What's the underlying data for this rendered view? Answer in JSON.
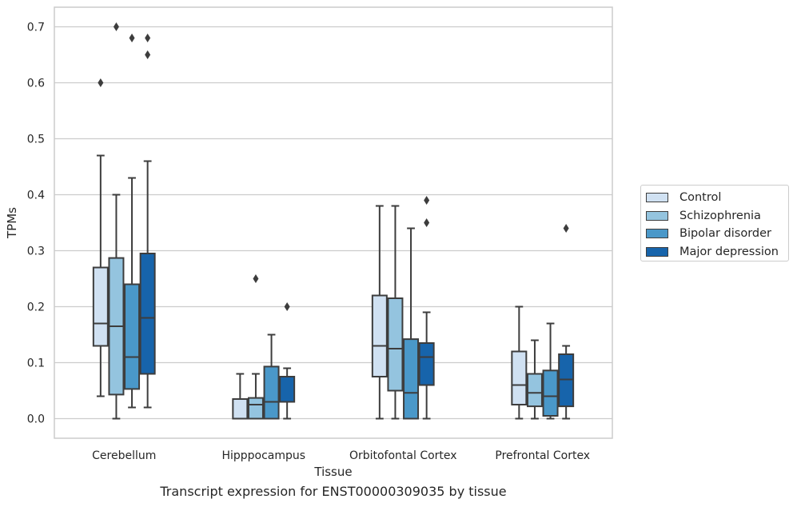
{
  "caption": "Transcript expression for ENST00000309035 by tissue",
  "chart_data": {
    "type": "box",
    "title": "",
    "xlabel": "Tissue",
    "ylabel": "TPMs",
    "ylim": [
      -0.035,
      0.735
    ],
    "yticks": [
      0.0,
      0.1,
      0.2,
      0.3,
      0.4,
      0.5,
      0.6,
      0.7
    ],
    "ytick_labels": [
      "0.0",
      "0.1",
      "0.2",
      "0.3",
      "0.4",
      "0.5",
      "0.6",
      "0.7"
    ],
    "grid": "horizontal",
    "legend_placement": "right",
    "categories": [
      "Cerebellum",
      "Hipppocampus",
      "Orbitofontal Cortex",
      "Prefrontal Cortex"
    ],
    "series": [
      {
        "name": "Control",
        "color": "#d0e1f2",
        "boxes": [
          {
            "whislo": 0.04,
            "q1": 0.13,
            "med": 0.17,
            "q3": 0.27,
            "whishi": 0.47,
            "fliers": [
              0.6
            ]
          },
          {
            "whislo": 0.0,
            "q1": 0.0,
            "med": 0.0,
            "q3": 0.035,
            "whishi": 0.08,
            "fliers": []
          },
          {
            "whislo": 0.0,
            "q1": 0.075,
            "med": 0.13,
            "q3": 0.22,
            "whishi": 0.38,
            "fliers": []
          },
          {
            "whislo": 0.0,
            "q1": 0.025,
            "med": 0.06,
            "q3": 0.12,
            "whishi": 0.2,
            "fliers": []
          }
        ]
      },
      {
        "name": "Schizophrenia",
        "color": "#94c4df",
        "boxes": [
          {
            "whislo": 0.0,
            "q1": 0.043,
            "med": 0.165,
            "q3": 0.287,
            "whishi": 0.4,
            "fliers": [
              0.7
            ]
          },
          {
            "whislo": 0.0,
            "q1": 0.0,
            "med": 0.025,
            "q3": 0.037,
            "whishi": 0.08,
            "fliers": [
              0.25
            ]
          },
          {
            "whislo": 0.0,
            "q1": 0.05,
            "med": 0.125,
            "q3": 0.215,
            "whishi": 0.38,
            "fliers": []
          },
          {
            "whislo": 0.0,
            "q1": 0.022,
            "med": 0.046,
            "q3": 0.08,
            "whishi": 0.14,
            "fliers": []
          }
        ]
      },
      {
        "name": "Bipolar disorder",
        "color": "#4a98c9",
        "boxes": [
          {
            "whislo": 0.02,
            "q1": 0.053,
            "med": 0.11,
            "q3": 0.24,
            "whishi": 0.43,
            "fliers": [
              0.68
            ]
          },
          {
            "whislo": 0.0,
            "q1": 0.0,
            "med": 0.03,
            "q3": 0.093,
            "whishi": 0.15,
            "fliers": []
          },
          {
            "whislo": 0.0,
            "q1": 0.0,
            "med": 0.046,
            "q3": 0.142,
            "whishi": 0.34,
            "fliers": []
          },
          {
            "whislo": 0.0,
            "q1": 0.005,
            "med": 0.04,
            "q3": 0.086,
            "whishi": 0.17,
            "fliers": []
          }
        ]
      },
      {
        "name": "Major depression",
        "color": "#1764ab",
        "boxes": [
          {
            "whislo": 0.02,
            "q1": 0.08,
            "med": 0.18,
            "q3": 0.295,
            "whishi": 0.46,
            "fliers": [
              0.65,
              0.68
            ]
          },
          {
            "whislo": 0.0,
            "q1": 0.03,
            "med": 0.03,
            "q3": 0.075,
            "whishi": 0.09,
            "fliers": [
              0.2
            ]
          },
          {
            "whislo": 0.0,
            "q1": 0.06,
            "med": 0.11,
            "q3": 0.135,
            "whishi": 0.19,
            "fliers": [
              0.35,
              0.39
            ]
          },
          {
            "whislo": 0.0,
            "q1": 0.022,
            "med": 0.07,
            "q3": 0.115,
            "whishi": 0.13,
            "fliers": [
              0.34
            ]
          }
        ]
      }
    ]
  }
}
